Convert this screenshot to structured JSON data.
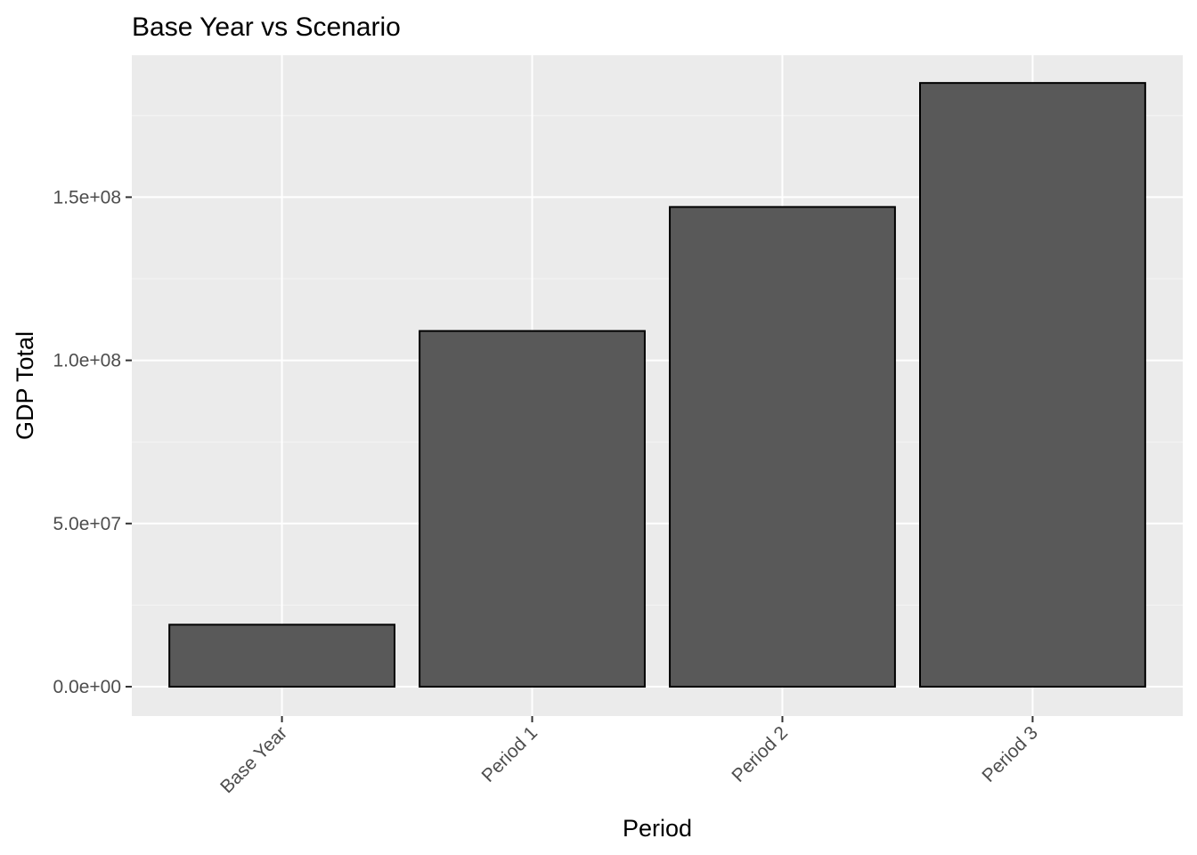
{
  "chart_data": {
    "type": "bar",
    "title": "Base Year vs Scenario",
    "xlabel": "Period",
    "ylabel": "GDP Total",
    "categories": [
      "Base Year",
      "Period 1",
      "Period 2",
      "Period 3"
    ],
    "values": [
      19000000,
      109000000,
      147000000,
      185000000
    ],
    "ylim": [
      -9000000,
      193500000
    ],
    "yticks": [
      0,
      50000000,
      100000000,
      150000000
    ],
    "ytick_labels": [
      "0.0e+00",
      "5.0e+07",
      "1.0e+08",
      "1.5e+08"
    ],
    "grid": true,
    "legend": "none",
    "colors": {
      "panel_background": "#ebebeb",
      "grid_major": "#ffffff",
      "grid_minor": "#f5f5f5",
      "bar_fill": "#595959",
      "bar_outline": "#000000",
      "tick_text": "#4d4d4d",
      "tick_mark": "#333333"
    }
  }
}
